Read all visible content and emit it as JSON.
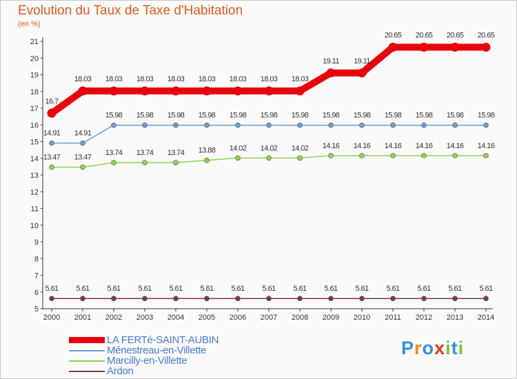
{
  "title": "Evolution du Taux de Taxe d'Habitation",
  "subtitle": "(en %)",
  "logo": {
    "letters": [
      "P",
      "r",
      "o",
      "x",
      "i",
      "t",
      "i"
    ],
    "colors": [
      "#3a8fd9",
      "#f08a1c",
      "#3a8fd9",
      "#e03a1c",
      "#7cc242",
      "#3a8fd9",
      "#7cc242"
    ]
  },
  "chart_data": {
    "type": "line",
    "categories": [
      "2000",
      "2001",
      "2002",
      "2003",
      "2004",
      "2005",
      "2006",
      "2007",
      "2008",
      "2009",
      "2010",
      "2011",
      "2012",
      "2013",
      "2014"
    ],
    "ylim": [
      5,
      21
    ],
    "yticks": [
      "5",
      "6",
      "7",
      "8",
      "9",
      "10",
      "11",
      "12",
      "13",
      "14",
      "15",
      "16",
      "17",
      "18",
      "19",
      "20",
      "21"
    ],
    "grid": false,
    "legend_position": "bottom-left",
    "series": [
      {
        "name": "LA FERTé-SAINT-AUBIN",
        "color": "#e8000b",
        "values": [
          16.7,
          18.03,
          18.03,
          18.03,
          18.03,
          18.03,
          18.03,
          18.03,
          18.03,
          19.11,
          19.11,
          20.65,
          20.65,
          20.65,
          20.65
        ],
        "labels": [
          "16.7",
          "18.03",
          "18.03",
          "18.03",
          "18.03",
          "18.03",
          "18.03",
          "18.03",
          "18.03",
          "19.11",
          "19.11",
          "20.65",
          "20.65",
          "20.65",
          "20.65"
        ]
      },
      {
        "name": "Ménestreau-en-Villette",
        "color": "#6a9fd4",
        "values": [
          14.91,
          14.91,
          15.98,
          15.98,
          15.98,
          15.98,
          15.98,
          15.98,
          15.98,
          15.98,
          15.98,
          15.98,
          15.98,
          15.98,
          15.98
        ],
        "labels": [
          "14.91",
          "14.91",
          "15.98",
          "15.98",
          "15.98",
          "15.98",
          "15.98",
          "15.98",
          "15.98",
          "15.98",
          "15.98",
          "15.98",
          "15.98",
          "15.98",
          "15.98"
        ]
      },
      {
        "name": "Marcilly-en-Villette",
        "color": "#8fd34e",
        "values": [
          13.47,
          13.47,
          13.74,
          13.74,
          13.74,
          13.88,
          14.02,
          14.02,
          14.02,
          14.16,
          14.16,
          14.16,
          14.16,
          14.16,
          14.16
        ],
        "labels": [
          "13.47",
          "13.47",
          "13.74",
          "13.74",
          "13.74",
          "13.88",
          "14.02",
          "14.02",
          "14.02",
          "14.16",
          "14.16",
          "14.16",
          "14.16",
          "14.16",
          "14.16"
        ]
      },
      {
        "name": "Ardon",
        "color": "#7a3b3b",
        "values": [
          5.61,
          5.61,
          5.61,
          5.61,
          5.61,
          5.61,
          5.61,
          5.61,
          5.61,
          5.61,
          5.61,
          5.61,
          5.61,
          5.61,
          5.61
        ],
        "labels": [
          "5.61",
          "5.61",
          "5.61",
          "5.61",
          "5.61",
          "5.61",
          "5.61",
          "5.61",
          "5.61",
          "5.61",
          "5.61",
          "5.61",
          "5.61",
          "5.61",
          "5.61"
        ]
      }
    ]
  }
}
